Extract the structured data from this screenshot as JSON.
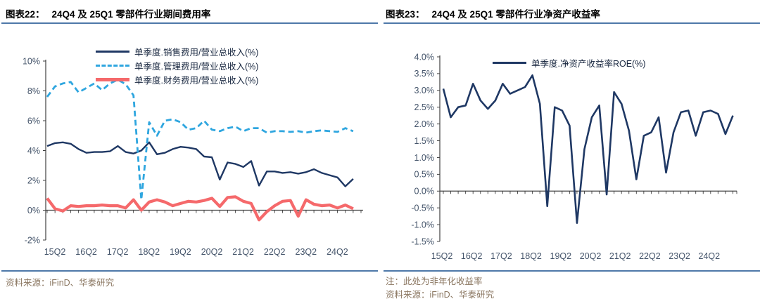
{
  "figures": [
    {
      "label": "图表22：",
      "title": "24Q4 及 25Q1 零部件行业期间费用率",
      "source": "资料来源：iFinD、华泰研究"
    },
    {
      "label": "图表23：",
      "title": "24Q4 及 25Q1 零部件行业净资产收益率",
      "note": "注：此处为非年化收益率",
      "source": "资料来源：iFinD、华泰研究"
    }
  ],
  "colors": {
    "navy": "#1f3864",
    "sky_blue": "#2fa6df",
    "salmon_red": "#f5696b",
    "axis": "#404040",
    "tick_text": "#44546a",
    "rule_blue": "#4e78a9",
    "source_text": "#8a7660"
  },
  "chart_data": [
    {
      "type": "line",
      "title": "24Q4 及 25Q1 零部件行业期间费用率",
      "categories": [
        "15Q2",
        "15Q3",
        "15Q4",
        "16Q1",
        "16Q2",
        "16Q3",
        "16Q4",
        "17Q1",
        "17Q2",
        "17Q3",
        "17Q4",
        "18Q1",
        "18Q2",
        "18Q3",
        "18Q4",
        "19Q1",
        "19Q2",
        "19Q3",
        "19Q4",
        "20Q1",
        "20Q2",
        "20Q3",
        "20Q4",
        "21Q1",
        "21Q2",
        "21Q3",
        "21Q4",
        "22Q1",
        "22Q2",
        "22Q3",
        "22Q4",
        "23Q1",
        "23Q2",
        "23Q3",
        "23Q4",
        "24Q1",
        "24Q2",
        "24Q3",
        "24Q4",
        "25Q1"
      ],
      "x_tick_labels": [
        "15Q2",
        "16Q2",
        "17Q2",
        "18Q2",
        "19Q2",
        "20Q2",
        "21Q2",
        "22Q2",
        "23Q2",
        "24Q2"
      ],
      "ylim": [
        -2,
        10
      ],
      "y_tick_values": [
        10,
        8,
        6,
        4,
        2,
        0,
        -2
      ],
      "y_tick_labels": [
        "10%",
        "8%",
        "6%",
        "4%",
        "2%",
        "0%",
        "-2%"
      ],
      "grid": false,
      "legend_position": "top-center",
      "series": [
        {
          "name": "单季度.销售费用/营业总收入(%)",
          "color": "#1f3864",
          "dashed": false,
          "width": 2.4,
          "values": [
            4.3,
            4.5,
            4.55,
            4.45,
            4.1,
            3.85,
            3.9,
            3.9,
            3.95,
            4.3,
            3.9,
            3.8,
            4.0,
            4.55,
            3.75,
            3.85,
            4.1,
            4.25,
            4.2,
            4.1,
            3.6,
            3.55,
            2.05,
            3.2,
            3.1,
            2.9,
            3.3,
            1.65,
            2.6,
            2.6,
            2.5,
            2.55,
            2.45,
            2.55,
            2.75,
            2.5,
            2.35,
            2.2,
            1.6,
            2.1
          ]
        },
        {
          "name": "单季度.管理费用/营业总收入(%)",
          "color": "#2fa6df",
          "dashed": true,
          "width": 2.8,
          "values": [
            7.6,
            8.3,
            8.5,
            8.6,
            7.9,
            8.2,
            8.5,
            8.05,
            8.5,
            8.75,
            8.45,
            7.7,
            0.7,
            5.9,
            5.0,
            6.0,
            6.1,
            5.9,
            5.4,
            5.5,
            6.0,
            5.4,
            5.3,
            5.5,
            5.6,
            5.3,
            5.5,
            5.5,
            5.2,
            5.3,
            5.3,
            5.25,
            5.3,
            5.2,
            5.3,
            5.35,
            5.3,
            5.25,
            5.5,
            5.3
          ]
        },
        {
          "name": "单季度.财务费用/营业总收入(%)",
          "color": "#f5696b",
          "dashed": false,
          "width": 4.2,
          "values": [
            0.8,
            0.1,
            -0.05,
            0.3,
            0.25,
            0.3,
            0.3,
            0.35,
            0.3,
            0.3,
            0.15,
            0.7,
            0.0,
            0.55,
            0.7,
            0.55,
            0.3,
            0.45,
            0.6,
            0.55,
            0.65,
            0.8,
            0.25,
            0.85,
            0.9,
            0.6,
            0.45,
            -0.65,
            -0.1,
            0.3,
            0.6,
            0.65,
            -0.4,
            0.7,
            0.4,
            0.3,
            0.35,
            0.15,
            0.35,
            0.1
          ]
        }
      ]
    },
    {
      "type": "line",
      "title": "24Q4 及 25Q1 零部件行业净资产收益率",
      "categories": [
        "15Q2",
        "15Q3",
        "15Q4",
        "16Q1",
        "16Q2",
        "16Q3",
        "16Q4",
        "17Q1",
        "17Q2",
        "17Q3",
        "17Q4",
        "18Q1",
        "18Q2",
        "18Q3",
        "18Q4",
        "19Q1",
        "19Q2",
        "19Q3",
        "19Q4",
        "20Q1",
        "20Q2",
        "20Q3",
        "20Q4",
        "21Q1",
        "21Q2",
        "21Q3",
        "21Q4",
        "22Q1",
        "22Q2",
        "22Q3",
        "22Q4",
        "23Q1",
        "23Q2",
        "23Q3",
        "23Q4",
        "24Q1",
        "24Q2",
        "24Q3",
        "24Q4",
        "25Q1"
      ],
      "x_tick_labels": [
        "15Q2",
        "16Q2",
        "17Q2",
        "18Q2",
        "19Q2",
        "20Q2",
        "21Q2",
        "22Q2",
        "23Q2",
        "24Q2"
      ],
      "ylim": [
        -1.5,
        4
      ],
      "y_tick_values": [
        4.0,
        3.5,
        3.0,
        2.5,
        2.0,
        1.5,
        1.0,
        0.5,
        0.0,
        -0.5,
        -1.0,
        -1.5
      ],
      "y_tick_labels": [
        "4.0%",
        "3.5%",
        "3.0%",
        "2.5%",
        "2.0%",
        "1.5%",
        "1.0%",
        "0.5%",
        "0.0%",
        "-0.5%",
        "-1.0%",
        "-1.5%"
      ],
      "grid": false,
      "legend_position": "top-center",
      "series": [
        {
          "name": "单季度.净资产收益率ROE(%)",
          "color": "#1f3864",
          "dashed": false,
          "width": 2.6,
          "values": [
            3.05,
            2.2,
            2.5,
            2.55,
            3.2,
            2.7,
            2.45,
            2.7,
            3.2,
            2.9,
            3.0,
            3.1,
            3.45,
            2.6,
            -0.45,
            2.5,
            2.4,
            1.95,
            -0.95,
            1.25,
            2.2,
            2.55,
            -0.1,
            2.95,
            2.6,
            1.8,
            0.35,
            1.65,
            1.75,
            2.2,
            0.55,
            1.75,
            2.35,
            2.4,
            1.65,
            2.35,
            2.4,
            2.3,
            1.7,
            2.25
          ]
        }
      ]
    }
  ]
}
